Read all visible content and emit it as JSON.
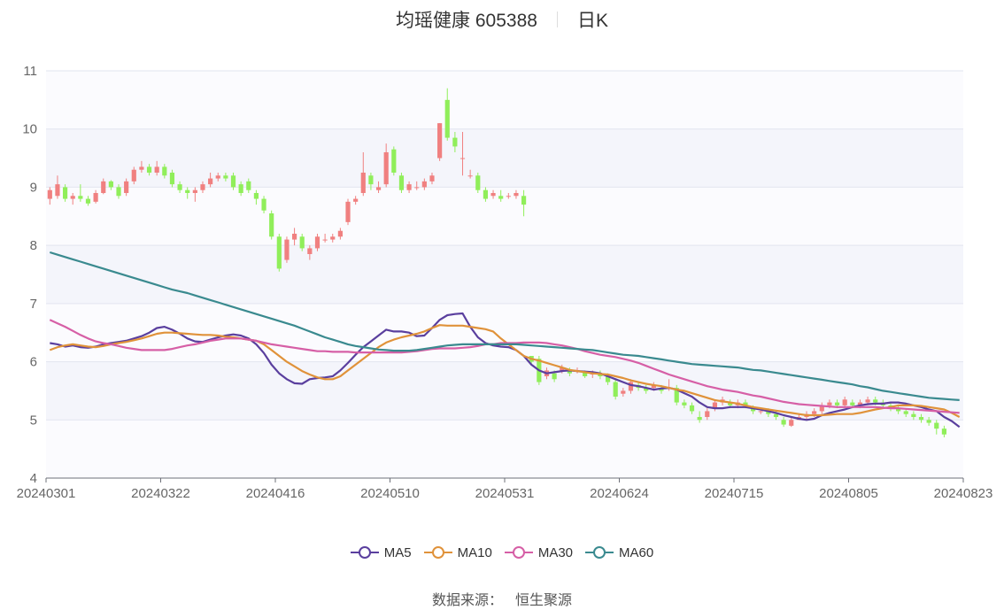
{
  "header": {
    "title": "均瑶健康 605388",
    "period": "日K"
  },
  "legend": [
    {
      "name": "MA5",
      "color": "#5a3f9e"
    },
    {
      "name": "MA10",
      "color": "#e0923a"
    },
    {
      "name": "MA30",
      "color": "#d65fa6"
    },
    {
      "name": "MA60",
      "color": "#3a8a8f"
    }
  ],
  "source": {
    "label": "数据来源：",
    "value": "恒生聚源"
  },
  "chart_data": {
    "type": "candlestick",
    "title": "均瑶健康 605388",
    "subtitle": "日K",
    "ylim": [
      4,
      11
    ],
    "yticks": [
      4,
      5,
      6,
      7,
      8,
      9,
      10,
      11
    ],
    "xticks": [
      "20240301",
      "20240322",
      "20240416",
      "20240510",
      "20240531",
      "20240624",
      "20240715",
      "20240805",
      "20240823"
    ],
    "grid": true,
    "legend_position": "bottom",
    "up_color": "#f08080",
    "down_color": "#90ee5a",
    "dates": [
      "20240301",
      "20240304",
      "20240305",
      "20240306",
      "20240307",
      "20240308",
      "20240311",
      "20240312",
      "20240313",
      "20240314",
      "20240315",
      "20240318",
      "20240319",
      "20240320",
      "20240321",
      "20240322",
      "20240325",
      "20240326",
      "20240327",
      "20240328",
      "20240329",
      "20240401",
      "20240402",
      "20240403",
      "20240408",
      "20240409",
      "20240410",
      "20240411",
      "20240412",
      "20240415",
      "20240416",
      "20240417",
      "20240418",
      "20240419",
      "20240422",
      "20240423",
      "20240424",
      "20240425",
      "20240426",
      "20240429",
      "20240430",
      "20240506",
      "20240507",
      "20240508",
      "20240509",
      "20240510",
      "20240513",
      "20240514",
      "20240515",
      "20240516",
      "20240517",
      "20240520",
      "20240521",
      "20240522",
      "20240523",
      "20240524",
      "20240527",
      "20240528",
      "20240529",
      "20240530",
      "20240531",
      "20240603",
      "20240604",
      "20240605",
      "20240606",
      "20240607",
      "20240611",
      "20240612",
      "20240613",
      "20240614",
      "20240617",
      "20240618",
      "20240619",
      "20240620",
      "20240621",
      "20240624",
      "20240625",
      "20240626",
      "20240627",
      "20240628",
      "20240701",
      "20240702",
      "20240703",
      "20240704",
      "20240705",
      "20240708",
      "20240709",
      "20240710",
      "20240711",
      "20240712",
      "20240715",
      "20240716",
      "20240717",
      "20240718",
      "20240719",
      "20240722",
      "20240723",
      "20240724",
      "20240725",
      "20240726",
      "20240729",
      "20240730",
      "20240731",
      "20240801",
      "20240802",
      "20240805",
      "20240806",
      "20240807",
      "20240808",
      "20240809",
      "20240812",
      "20240813",
      "20240814",
      "20240815",
      "20240816",
      "20240819",
      "20240820",
      "20240821",
      "20240822",
      "20240823"
    ],
    "candles": [
      [
        8.8,
        8.95,
        8.7,
        9.0
      ],
      [
        8.85,
        9.05,
        8.8,
        9.2
      ],
      [
        9.0,
        8.8,
        8.75,
        9.05
      ],
      [
        8.8,
        8.85,
        8.7,
        8.9
      ],
      [
        8.85,
        8.8,
        8.75,
        9.05
      ],
      [
        8.8,
        8.72,
        8.68,
        8.85
      ],
      [
        8.75,
        8.9,
        8.72,
        8.95
      ],
      [
        8.9,
        9.1,
        8.88,
        9.15
      ],
      [
        9.1,
        9.0,
        8.95,
        9.12
      ],
      [
        9.0,
        8.85,
        8.8,
        9.05
      ],
      [
        8.9,
        9.1,
        8.85,
        9.15
      ],
      [
        9.1,
        9.3,
        9.05,
        9.35
      ],
      [
        9.3,
        9.35,
        9.25,
        9.45
      ],
      [
        9.35,
        9.25,
        9.2,
        9.4
      ],
      [
        9.25,
        9.35,
        9.2,
        9.45
      ],
      [
        9.35,
        9.2,
        9.15,
        9.4
      ],
      [
        9.25,
        9.05,
        9.0,
        9.3
      ],
      [
        9.05,
        8.95,
        8.9,
        9.1
      ],
      [
        8.95,
        8.9,
        8.8,
        9.0
      ],
      [
        8.9,
        8.95,
        8.75,
        9.0
      ],
      [
        8.95,
        9.05,
        8.9,
        9.1
      ],
      [
        9.05,
        9.15,
        9.0,
        9.25
      ],
      [
        9.15,
        9.2,
        9.1,
        9.25
      ],
      [
        9.2,
        9.15,
        9.1,
        9.25
      ],
      [
        9.2,
        9.0,
        8.95,
        9.25
      ],
      [
        9.05,
        8.9,
        8.85,
        9.1
      ],
      [
        9.1,
        8.95,
        8.9,
        9.15
      ],
      [
        8.9,
        8.8,
        8.7,
        8.95
      ],
      [
        8.8,
        8.6,
        8.55,
        8.85
      ],
      [
        8.55,
        8.15,
        8.1,
        8.6
      ],
      [
        8.15,
        7.6,
        7.55,
        8.2
      ],
      [
        7.75,
        8.1,
        7.7,
        8.15
      ],
      [
        8.1,
        8.2,
        8.0,
        8.3
      ],
      [
        8.15,
        7.95,
        7.9,
        8.2
      ],
      [
        7.85,
        7.95,
        7.75,
        8.0
      ],
      [
        7.95,
        8.15,
        7.9,
        8.2
      ],
      [
        8.1,
        8.1,
        8.05,
        8.2
      ],
      [
        8.1,
        8.15,
        8.05,
        8.2
      ],
      [
        8.15,
        8.25,
        8.1,
        8.3
      ],
      [
        8.4,
        8.75,
        8.35,
        8.8
      ],
      [
        8.75,
        8.8,
        8.7,
        8.85
      ],
      [
        8.9,
        9.25,
        8.85,
        9.6
      ],
      [
        9.2,
        9.05,
        8.95,
        9.25
      ],
      [
        8.95,
        9.0,
        8.9,
        9.1
      ],
      [
        9.05,
        9.6,
        9.0,
        9.75
      ],
      [
        9.65,
        9.25,
        9.2,
        9.7
      ],
      [
        9.2,
        8.95,
        8.9,
        9.25
      ],
      [
        8.95,
        9.05,
        8.9,
        9.1
      ],
      [
        9.0,
        9.0,
        8.95,
        9.1
      ],
      [
        9.0,
        9.1,
        8.95,
        9.15
      ],
      [
        9.1,
        9.2,
        9.05,
        9.25
      ],
      [
        9.5,
        10.1,
        9.45,
        10.1
      ],
      [
        10.5,
        9.85,
        9.8,
        10.7
      ],
      [
        9.85,
        9.7,
        9.6,
        9.95
      ],
      [
        9.5,
        9.5,
        9.2,
        9.95
      ],
      [
        9.2,
        9.2,
        9.15,
        9.3
      ],
      [
        9.2,
        8.95,
        8.9,
        9.25
      ],
      [
        8.95,
        8.8,
        8.75,
        9.0
      ],
      [
        8.85,
        8.9,
        8.8,
        8.95
      ],
      [
        8.85,
        8.8,
        8.75,
        8.95
      ],
      [
        8.85,
        8.85,
        8.8,
        8.9
      ],
      [
        8.85,
        8.9,
        8.8,
        8.95
      ],
      [
        8.85,
        8.7,
        8.5,
        8.95
      ],
      [
        6.1,
        6.0,
        5.95,
        6.1
      ],
      [
        6.05,
        5.65,
        5.6,
        6.1
      ],
      [
        5.75,
        5.85,
        5.7,
        5.9
      ],
      [
        5.8,
        5.7,
        5.65,
        5.85
      ],
      [
        5.85,
        5.9,
        5.8,
        5.95
      ],
      [
        5.85,
        5.8,
        5.75,
        5.9
      ],
      [
        5.85,
        5.85,
        5.8,
        5.9
      ],
      [
        5.82,
        5.75,
        5.72,
        5.85
      ],
      [
        5.78,
        5.8,
        5.72,
        5.85
      ],
      [
        5.8,
        5.75,
        5.7,
        5.85
      ],
      [
        5.75,
        5.65,
        5.6,
        5.8
      ],
      [
        5.65,
        5.4,
        5.35,
        5.7
      ],
      [
        5.45,
        5.5,
        5.4,
        5.55
      ],
      [
        5.5,
        5.65,
        5.45,
        5.7
      ],
      [
        5.6,
        5.55,
        5.5,
        5.65
      ],
      [
        5.55,
        5.5,
        5.45,
        5.6
      ],
      [
        5.55,
        5.6,
        5.5,
        5.65
      ],
      [
        5.55,
        5.5,
        5.45,
        5.6
      ],
      [
        5.55,
        5.55,
        5.5,
        5.7
      ],
      [
        5.55,
        5.3,
        5.25,
        5.6
      ],
      [
        5.3,
        5.25,
        5.2,
        5.35
      ],
      [
        5.25,
        5.15,
        5.1,
        5.3
      ],
      [
        5.05,
        5.0,
        4.95,
        5.15
      ],
      [
        5.05,
        5.15,
        5.0,
        5.2
      ],
      [
        5.2,
        5.3,
        5.15,
        5.35
      ],
      [
        5.3,
        5.35,
        5.25,
        5.4
      ],
      [
        5.3,
        5.25,
        5.2,
        5.35
      ],
      [
        5.25,
        5.3,
        5.2,
        5.35
      ],
      [
        5.3,
        5.25,
        5.2,
        5.35
      ],
      [
        5.2,
        5.15,
        5.1,
        5.25
      ],
      [
        5.15,
        5.15,
        5.1,
        5.2
      ],
      [
        5.15,
        5.1,
        5.05,
        5.2
      ],
      [
        5.1,
        5.05,
        5.0,
        5.15
      ],
      [
        5.0,
        4.92,
        4.88,
        5.05
      ],
      [
        4.9,
        5.0,
        4.88,
        5.05
      ],
      [
        5.0,
        5.05,
        5.0,
        5.1
      ],
      [
        5.05,
        5.1,
        5.0,
        5.15
      ],
      [
        5.1,
        5.15,
        5.05,
        5.2
      ],
      [
        5.15,
        5.25,
        5.1,
        5.3
      ],
      [
        5.25,
        5.3,
        5.2,
        5.35
      ],
      [
        5.3,
        5.25,
        5.2,
        5.35
      ],
      [
        5.25,
        5.35,
        5.2,
        5.4
      ],
      [
        5.3,
        5.25,
        5.2,
        5.35
      ],
      [
        5.25,
        5.3,
        5.2,
        5.35
      ],
      [
        5.3,
        5.35,
        5.25,
        5.4
      ],
      [
        5.35,
        5.3,
        5.25,
        5.4
      ],
      [
        5.3,
        5.25,
        5.2,
        5.35
      ],
      [
        5.25,
        5.2,
        5.15,
        5.3
      ],
      [
        5.2,
        5.15,
        5.1,
        5.25
      ],
      [
        5.15,
        5.1,
        5.05,
        5.2
      ],
      [
        5.1,
        5.05,
        5.0,
        5.15
      ],
      [
        5.05,
        5.0,
        4.95,
        5.1
      ],
      [
        5.0,
        4.95,
        4.9,
        5.05
      ],
      [
        4.95,
        4.85,
        4.75,
        5.0
      ],
      [
        4.85,
        4.75,
        4.7,
        4.9
      ]
    ],
    "series": [
      {
        "name": "MA5",
        "color": "#5a3f9e",
        "values": [
          6.32,
          6.3,
          6.26,
          6.28,
          6.25,
          6.24,
          6.26,
          6.3,
          6.32,
          6.34,
          6.36,
          6.4,
          6.44,
          6.5,
          6.58,
          6.6,
          6.55,
          6.48,
          6.4,
          6.35,
          6.34,
          6.38,
          6.42,
          6.45,
          6.47,
          6.45,
          6.4,
          6.3,
          6.15,
          5.95,
          5.8,
          5.7,
          5.63,
          5.62,
          5.7,
          5.72,
          5.73,
          5.75,
          5.85,
          5.98,
          6.12,
          6.25,
          6.35,
          6.45,
          6.55,
          6.52,
          6.52,
          6.5,
          6.44,
          6.45,
          6.58,
          6.72,
          6.8,
          6.82,
          6.83,
          6.6,
          6.42,
          6.32,
          6.28,
          6.26,
          6.25,
          6.2,
          6.1,
          5.95,
          5.85,
          5.8,
          5.82,
          5.84,
          5.85,
          5.84,
          5.83,
          5.82,
          5.8,
          5.75,
          5.7,
          5.65,
          5.6,
          5.58,
          5.55,
          5.52,
          5.54,
          5.55,
          5.52,
          5.46,
          5.4,
          5.3,
          5.22,
          5.2,
          5.2,
          5.22,
          5.22,
          5.22,
          5.2,
          5.18,
          5.15,
          5.12,
          5.08,
          5.05,
          5.02,
          5.0,
          5.02,
          5.08,
          5.12,
          5.15,
          5.18,
          5.22,
          5.25,
          5.27,
          5.28,
          5.28,
          5.3,
          5.3,
          5.28,
          5.25,
          5.22,
          5.18,
          5.15,
          5.05,
          4.98,
          4.88
        ]
      },
      {
        "name": "MA10",
        "color": "#e0923a",
        "values": [
          6.2,
          6.25,
          6.28,
          6.3,
          6.28,
          6.26,
          6.25,
          6.27,
          6.3,
          6.32,
          6.34,
          6.37,
          6.4,
          6.44,
          6.48,
          6.5,
          6.5,
          6.49,
          6.48,
          6.47,
          6.46,
          6.46,
          6.45,
          6.43,
          6.42,
          6.4,
          6.38,
          6.36,
          6.3,
          6.2,
          6.1,
          6.0,
          5.92,
          5.84,
          5.78,
          5.73,
          5.7,
          5.7,
          5.75,
          5.85,
          5.95,
          6.05,
          6.15,
          6.25,
          6.33,
          6.38,
          6.42,
          6.45,
          6.48,
          6.52,
          6.58,
          6.63,
          6.62,
          6.62,
          6.62,
          6.6,
          6.58,
          6.56,
          6.52,
          6.4,
          6.3,
          6.2,
          6.1,
          6.05,
          6.02,
          5.98,
          5.94,
          5.9,
          5.86,
          5.84,
          5.82,
          5.8,
          5.79,
          5.78,
          5.75,
          5.72,
          5.68,
          5.65,
          5.62,
          5.6,
          5.58,
          5.55,
          5.52,
          5.5,
          5.46,
          5.42,
          5.38,
          5.34,
          5.32,
          5.3,
          5.28,
          5.25,
          5.22,
          5.2,
          5.18,
          5.16,
          5.14,
          5.12,
          5.1,
          5.08,
          5.08,
          5.08,
          5.09,
          5.1,
          5.1,
          5.1,
          5.12,
          5.15,
          5.18,
          5.2,
          5.22,
          5.25,
          5.25,
          5.25,
          5.24,
          5.22,
          5.2,
          5.18,
          5.12,
          5.05
        ]
      },
      {
        "name": "MA30",
        "color": "#d65fa6",
        "values": [
          6.72,
          6.66,
          6.6,
          6.53,
          6.46,
          6.4,
          6.35,
          6.32,
          6.3,
          6.27,
          6.24,
          6.22,
          6.2,
          6.2,
          6.2,
          6.2,
          6.22,
          6.25,
          6.28,
          6.3,
          6.33,
          6.36,
          6.38,
          6.4,
          6.4,
          6.4,
          6.38,
          6.36,
          6.33,
          6.3,
          6.28,
          6.26,
          6.24,
          6.22,
          6.2,
          6.18,
          6.18,
          6.17,
          6.17,
          6.17,
          6.16,
          6.16,
          6.16,
          6.16,
          6.16,
          6.16,
          6.16,
          6.17,
          6.18,
          6.2,
          6.22,
          6.23,
          6.23,
          6.23,
          6.24,
          6.25,
          6.27,
          6.3,
          6.3,
          6.32,
          6.32,
          6.32,
          6.33,
          6.33,
          6.33,
          6.32,
          6.3,
          6.28,
          6.25,
          6.22,
          6.18,
          6.15,
          6.12,
          6.1,
          6.08,
          6.05,
          6.02,
          5.98,
          5.93,
          5.88,
          5.83,
          5.78,
          5.74,
          5.7,
          5.66,
          5.62,
          5.58,
          5.55,
          5.52,
          5.5,
          5.48,
          5.45,
          5.42,
          5.4,
          5.37,
          5.34,
          5.31,
          5.29,
          5.27,
          5.26,
          5.25,
          5.24,
          5.23,
          5.22,
          5.22,
          5.22,
          5.22,
          5.22,
          5.22,
          5.21,
          5.2,
          5.2,
          5.19,
          5.18,
          5.17,
          5.16,
          5.15,
          5.14,
          5.13,
          5.12
        ]
      },
      {
        "name": "MA60",
        "color": "#3a8a8f",
        "values": [
          7.88,
          7.84,
          7.8,
          7.76,
          7.72,
          7.68,
          7.64,
          7.6,
          7.56,
          7.52,
          7.48,
          7.44,
          7.4,
          7.36,
          7.32,
          7.28,
          7.24,
          7.21,
          7.18,
          7.14,
          7.1,
          7.06,
          7.02,
          6.98,
          6.94,
          6.9,
          6.86,
          6.82,
          6.78,
          6.74,
          6.7,
          6.66,
          6.62,
          6.57,
          6.52,
          6.47,
          6.42,
          6.38,
          6.34,
          6.3,
          6.27,
          6.25,
          6.23,
          6.21,
          6.2,
          6.19,
          6.19,
          6.19,
          6.2,
          6.22,
          6.24,
          6.26,
          6.28,
          6.29,
          6.3,
          6.3,
          6.3,
          6.3,
          6.3,
          6.3,
          6.3,
          6.3,
          6.29,
          6.28,
          6.27,
          6.26,
          6.25,
          6.24,
          6.23,
          6.22,
          6.21,
          6.2,
          6.18,
          6.16,
          6.14,
          6.12,
          6.11,
          6.1,
          6.08,
          6.06,
          6.04,
          6.02,
          6.0,
          5.98,
          5.96,
          5.95,
          5.94,
          5.93,
          5.92,
          5.91,
          5.9,
          5.88,
          5.86,
          5.85,
          5.83,
          5.81,
          5.79,
          5.77,
          5.75,
          5.73,
          5.71,
          5.69,
          5.67,
          5.65,
          5.63,
          5.61,
          5.58,
          5.56,
          5.53,
          5.5,
          5.48,
          5.46,
          5.44,
          5.42,
          5.4,
          5.38,
          5.37,
          5.36,
          5.35,
          5.34
        ]
      }
    ]
  }
}
